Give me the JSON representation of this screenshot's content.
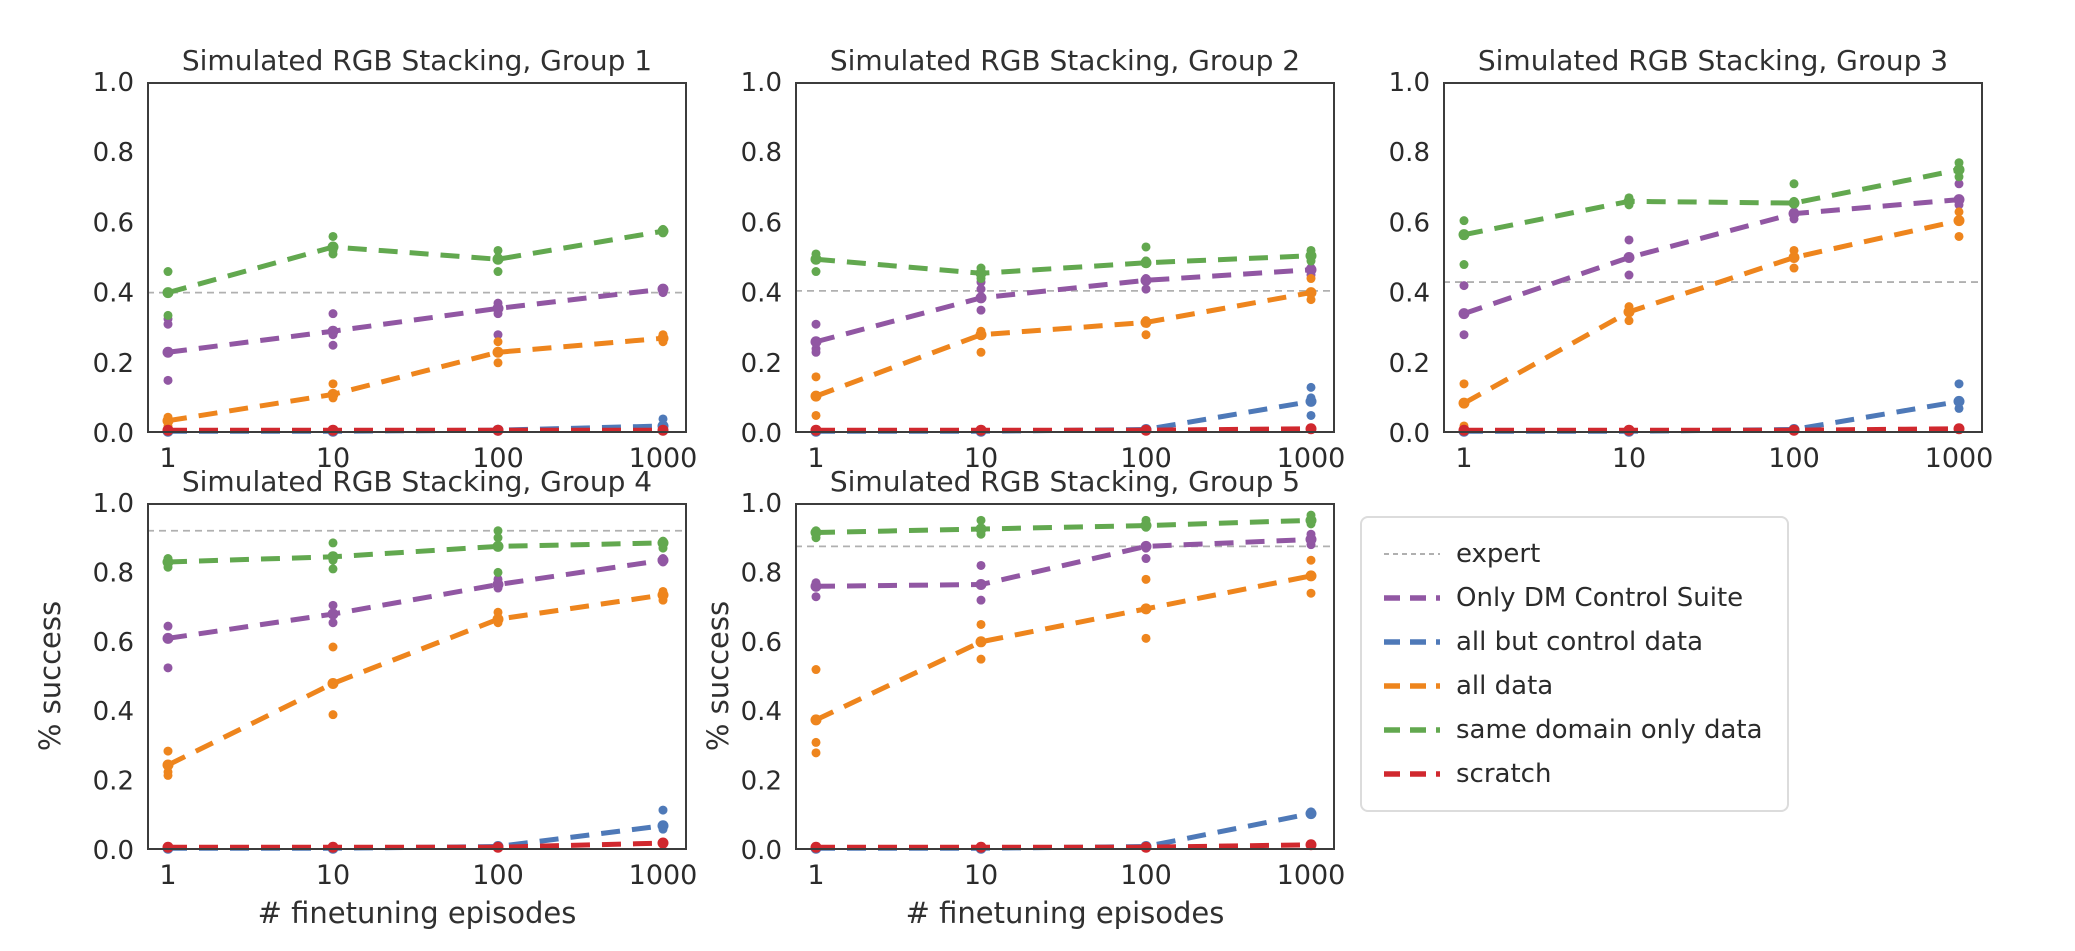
{
  "figure": {
    "background": "#ffffff",
    "spine_color": "#3c3c3c",
    "tick_text_color": "#2b2b2b",
    "expert_line_color": "#b0b0b0"
  },
  "legend": {
    "items": [
      {
        "label": "expert",
        "color": "#b0b0b0",
        "style": "thin-dashed"
      },
      {
        "label": "Only DM Control Suite",
        "color": "#9157a3",
        "style": "dashed"
      },
      {
        "label": "all but control data",
        "color": "#4e79b8",
        "style": "dashed"
      },
      {
        "label": "all data",
        "color": "#ee851d",
        "style": "dashed"
      },
      {
        "label": "same domain only data",
        "color": "#62a84f",
        "style": "dashed"
      },
      {
        "label": "scratch",
        "color": "#d0282e",
        "style": "dashed"
      }
    ]
  },
  "chart_data": [
    {
      "type": "line",
      "title": "Simulated RGB Stacking, Group 1",
      "x": [
        1,
        10,
        100,
        1000
      ],
      "x_scale": "log",
      "xticklabels": [
        "1",
        "10",
        "100",
        "1000"
      ],
      "ylim": [
        0.0,
        1.0
      ],
      "yticks": [
        "0.0",
        "0.2",
        "0.4",
        "0.6",
        "0.8",
        "1.0"
      ],
      "xlabel": "",
      "ylabel": "",
      "grid": false,
      "expert": 0.4,
      "series": [
        {
          "name": "Only DM Control Suite",
          "means": [
            0.23,
            0.29,
            0.355,
            0.41
          ],
          "scatter": [
            [
              0.325,
              0.31,
              0.15
            ],
            [
              0.34,
              0.28,
              0.25
            ],
            [
              0.37,
              0.34,
              0.28
            ],
            [
              0.41,
              0.4
            ]
          ]
        },
        {
          "name": "all but control data",
          "means": [
            0.005,
            0.005,
            0.008,
            0.02
          ],
          "scatter": [
            [],
            [],
            [],
            [
              0.04,
              0.02
            ]
          ]
        },
        {
          "name": "all data",
          "means": [
            0.035,
            0.11,
            0.23,
            0.27
          ],
          "scatter": [
            [
              0.045,
              0.02
            ],
            [
              0.14,
              0.1
            ],
            [
              0.26,
              0.2
            ],
            [
              0.28,
              0.26
            ]
          ]
        },
        {
          "name": "same domain only data",
          "means": [
            0.4,
            0.53,
            0.495,
            0.575
          ],
          "scatter": [
            [
              0.46,
              0.335
            ],
            [
              0.56,
              0.52,
              0.51
            ],
            [
              0.52,
              0.5,
              0.46
            ],
            [
              0.58,
              0.57
            ]
          ]
        },
        {
          "name": "scratch",
          "means": [
            0.008,
            0.008,
            0.008,
            0.008
          ],
          "scatter": [
            [],
            [],
            [],
            []
          ]
        }
      ]
    },
    {
      "type": "line",
      "title": "Simulated RGB Stacking, Group 2",
      "x": [
        1,
        10,
        100,
        1000
      ],
      "x_scale": "log",
      "xticklabels": [
        "1",
        "10",
        "100",
        "1000"
      ],
      "ylim": [
        0.0,
        1.0
      ],
      "yticks": [
        "0.0",
        "0.2",
        "0.4",
        "0.6",
        "0.8",
        "1.0"
      ],
      "xlabel": "",
      "ylabel": "",
      "grid": false,
      "expert": 0.405,
      "series": [
        {
          "name": "Only DM Control Suite",
          "means": [
            0.26,
            0.385,
            0.435,
            0.465
          ],
          "scatter": [
            [
              0.31,
              0.24,
              0.23
            ],
            [
              0.43,
              0.41,
              0.35
            ],
            [
              0.49,
              0.44,
              0.41
            ],
            [
              0.47,
              0.45
            ]
          ]
        },
        {
          "name": "all but control data",
          "means": [
            0.005,
            0.005,
            0.01,
            0.09
          ],
          "scatter": [
            [],
            [],
            [],
            [
              0.13,
              0.1,
              0.05
            ]
          ]
        },
        {
          "name": "all data",
          "means": [
            0.105,
            0.28,
            0.315,
            0.4
          ],
          "scatter": [
            [
              0.16,
              0.05
            ],
            [
              0.29,
              0.23
            ],
            [
              0.32,
              0.28
            ],
            [
              0.44,
              0.38
            ]
          ]
        },
        {
          "name": "same domain only data",
          "means": [
            0.495,
            0.455,
            0.485,
            0.505
          ],
          "scatter": [
            [
              0.51,
              0.46
            ],
            [
              0.47,
              0.44
            ],
            [
              0.53,
              0.49
            ],
            [
              0.52,
              0.49
            ]
          ]
        },
        {
          "name": "scratch",
          "means": [
            0.008,
            0.008,
            0.008,
            0.012
          ],
          "scatter": [
            [],
            [],
            [],
            []
          ]
        }
      ]
    },
    {
      "type": "line",
      "title": "Simulated RGB Stacking, Group 3",
      "x": [
        1,
        10,
        100,
        1000
      ],
      "x_scale": "log",
      "xticklabels": [
        "1",
        "10",
        "100",
        "1000"
      ],
      "ylim": [
        0.0,
        1.0
      ],
      "yticks": [
        "0.0",
        "0.2",
        "0.4",
        "0.6",
        "0.8",
        "1.0"
      ],
      "xlabel": "",
      "ylabel": "",
      "grid": false,
      "expert": 0.43,
      "series": [
        {
          "name": "Only DM Control Suite",
          "means": [
            0.34,
            0.5,
            0.625,
            0.665
          ],
          "scatter": [
            [
              0.42,
              0.28
            ],
            [
              0.55,
              0.45
            ],
            [
              0.63,
              0.61
            ],
            [
              0.71,
              0.65
            ]
          ]
        },
        {
          "name": "all but control data",
          "means": [
            0.005,
            0.005,
            0.01,
            0.09
          ],
          "scatter": [
            [],
            [],
            [],
            [
              0.14,
              0.07
            ]
          ]
        },
        {
          "name": "all data",
          "means": [
            0.085,
            0.345,
            0.5,
            0.605
          ],
          "scatter": [
            [
              0.14,
              0.02
            ],
            [
              0.36,
              0.32
            ],
            [
              0.52,
              0.47
            ],
            [
              0.63,
              0.56
            ]
          ]
        },
        {
          "name": "same domain only data",
          "means": [
            0.565,
            0.66,
            0.655,
            0.75
          ],
          "scatter": [
            [
              0.605,
              0.48
            ],
            [
              0.67,
              0.65
            ],
            [
              0.71,
              0.66
            ],
            [
              0.77,
              0.73
            ]
          ]
        },
        {
          "name": "scratch",
          "means": [
            0.008,
            0.008,
            0.008,
            0.012
          ],
          "scatter": [
            [],
            [],
            [],
            []
          ]
        }
      ]
    },
    {
      "type": "line",
      "title": "Simulated RGB Stacking, Group 4",
      "x": [
        1,
        10,
        100,
        1000
      ],
      "x_scale": "log",
      "xticklabels": [
        "1",
        "10",
        "100",
        "1000"
      ],
      "ylim": [
        0.0,
        1.0
      ],
      "yticks": [
        "0.0",
        "0.2",
        "0.4",
        "0.6",
        "0.8",
        "1.0"
      ],
      "xlabel": "# finetuning episodes",
      "ylabel": "% success",
      "grid": false,
      "expert": 0.92,
      "series": [
        {
          "name": "Only DM Control Suite",
          "means": [
            0.61,
            0.68,
            0.765,
            0.835
          ],
          "scatter": [
            [
              0.645,
              0.525
            ],
            [
              0.705,
              0.655
            ],
            [
              0.78,
              0.755
            ],
            [
              0.84,
              0.83
            ]
          ]
        },
        {
          "name": "all but control data",
          "means": [
            0.005,
            0.005,
            0.01,
            0.07
          ],
          "scatter": [
            [],
            [],
            [],
            [
              0.115,
              0.06
            ]
          ]
        },
        {
          "name": "all data",
          "means": [
            0.245,
            0.48,
            0.665,
            0.735
          ],
          "scatter": [
            [
              0.285,
              0.225,
              0.215
            ],
            [
              0.585,
              0.39
            ],
            [
              0.685,
              0.655
            ],
            [
              0.745,
              0.72
            ]
          ]
        },
        {
          "name": "same domain only data",
          "means": [
            0.83,
            0.845,
            0.875,
            0.885
          ],
          "scatter": [
            [
              0.84,
              0.815
            ],
            [
              0.885,
              0.835,
              0.81
            ],
            [
              0.92,
              0.9,
              0.8
            ],
            [
              0.89,
              0.87
            ]
          ]
        },
        {
          "name": "scratch",
          "means": [
            0.008,
            0.008,
            0.008,
            0.02
          ],
          "scatter": [
            [],
            [],
            [],
            []
          ]
        }
      ]
    },
    {
      "type": "line",
      "title": "Simulated RGB Stacking, Group 5",
      "x": [
        1,
        10,
        100,
        1000
      ],
      "x_scale": "log",
      "xticklabels": [
        "1",
        "10",
        "100",
        "1000"
      ],
      "ylim": [
        0.0,
        1.0
      ],
      "yticks": [
        "0.0",
        "0.2",
        "0.4",
        "0.6",
        "0.8",
        "1.0"
      ],
      "xlabel": "# finetuning episodes",
      "ylabel": "% success",
      "grid": false,
      "expert": 0.875,
      "series": [
        {
          "name": "Only DM Control Suite",
          "means": [
            0.76,
            0.765,
            0.875,
            0.895
          ],
          "scatter": [
            [
              0.77,
              0.73
            ],
            [
              0.82,
              0.72
            ],
            [
              0.87,
              0.84
            ],
            [
              0.91,
              0.88
            ]
          ]
        },
        {
          "name": "all but control data",
          "means": [
            0.005,
            0.005,
            0.01,
            0.105
          ],
          "scatter": [
            [],
            [],
            [],
            [
              0.11
            ]
          ]
        },
        {
          "name": "all data",
          "means": [
            0.375,
            0.6,
            0.695,
            0.79
          ],
          "scatter": [
            [
              0.52,
              0.31,
              0.28
            ],
            [
              0.65,
              0.55
            ],
            [
              0.78,
              0.61
            ],
            [
              0.835,
              0.74
            ]
          ]
        },
        {
          "name": "same domain only data",
          "means": [
            0.915,
            0.925,
            0.935,
            0.95
          ],
          "scatter": [
            [
              0.92,
              0.9
            ],
            [
              0.95,
              0.91
            ],
            [
              0.95,
              0.93
            ],
            [
              0.965,
              0.94
            ]
          ]
        },
        {
          "name": "scratch",
          "means": [
            0.008,
            0.008,
            0.008,
            0.015
          ],
          "scatter": [
            [],
            [],
            [],
            []
          ]
        }
      ]
    }
  ]
}
